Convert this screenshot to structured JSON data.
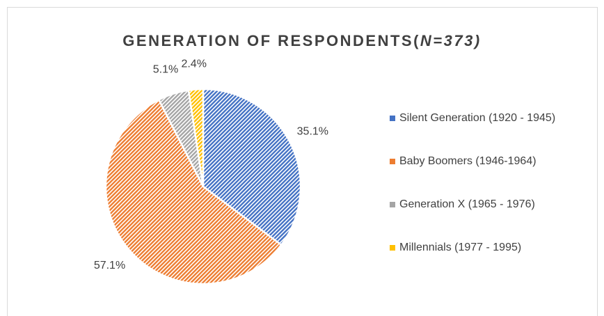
{
  "chart_data": {
    "type": "pie",
    "title": [
      "GENERATION OF RESPONDENTS(",
      "N=373)"
    ],
    "series": [
      {
        "name": "Silent Generation (1920 - 1945)",
        "color": "#4472c4"
      },
      {
        "name": "Baby Boomers (1946-1964)",
        "color": "#ed7d31"
      },
      {
        "name": "Generation X (1965 - 1976)",
        "color": "#a5a5a5"
      },
      {
        "name": "Millennials (1977 - 1995)",
        "color": "#ffc000"
      }
    ],
    "values": [
      35.1,
      57.1,
      5.1,
      2.4
    ],
    "value_labels": [
      "35.1%",
      "57.1%",
      "5.1%",
      "2.4%"
    ],
    "legend": "right"
  }
}
